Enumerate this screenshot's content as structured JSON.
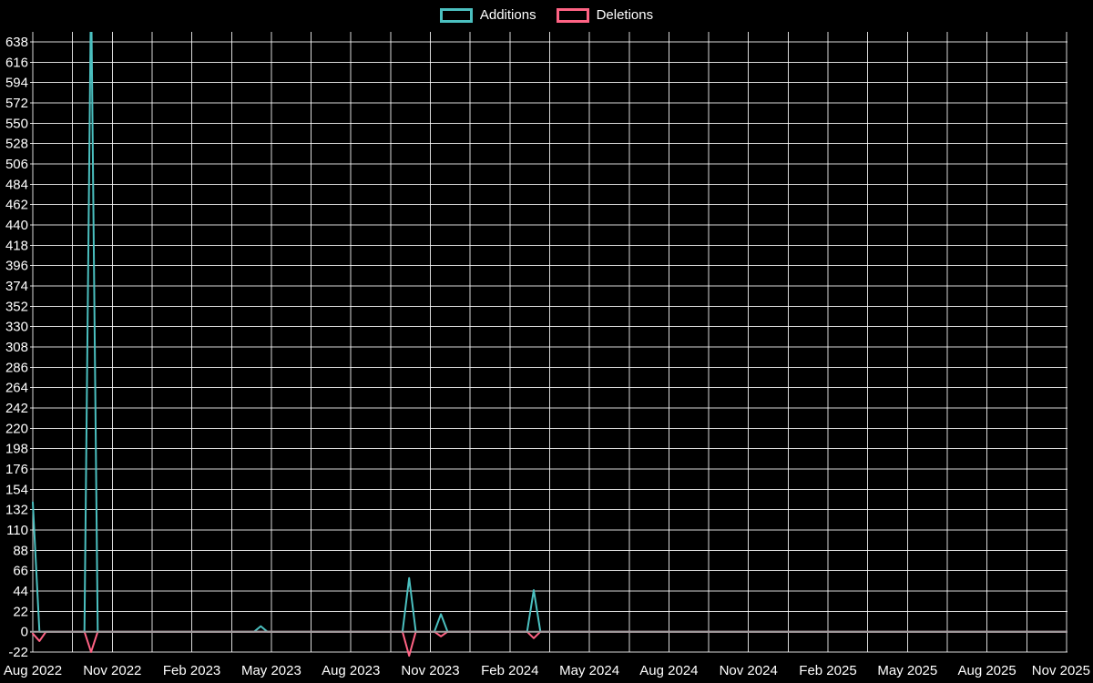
{
  "chart_data": {
    "type": "line",
    "title": "",
    "background": "#000000",
    "text_color": "#ffffff",
    "grid_color": "#ffffff",
    "zero_line_color": "#9e9e9e",
    "grid": true,
    "legend_position": "top-center",
    "x_unit": "months since Aug 2022 (weekly commit data)",
    "xlim": [
      0,
      39.1
    ],
    "ylim": [
      -30,
      650
    ],
    "x_tick_labels": [
      "Aug 2022",
      "Nov 2022",
      "Feb 2023",
      "May 2023",
      "Aug 2023",
      "Nov 2023",
      "Feb 2024",
      "May 2024",
      "Aug 2024",
      "Nov 2024",
      "Feb 2025",
      "May 2025",
      "Aug 2025",
      "Nov 2025"
    ],
    "x_tick_positions_months": [
      0,
      3,
      6,
      9,
      12,
      15,
      18,
      21,
      24,
      27,
      30,
      33,
      36,
      39
    ],
    "y_ticks": [
      -22,
      0,
      22,
      44,
      66,
      88,
      110,
      132,
      154,
      176,
      198,
      220,
      242,
      264,
      286,
      308,
      330,
      352,
      374,
      396,
      418,
      440,
      462,
      484,
      506,
      528,
      550,
      572,
      594,
      616,
      638
    ],
    "peak_clipped": true,
    "series": [
      {
        "name": "Additions",
        "color": "#4bc0c0",
        "points": [
          [
            0,
            140
          ],
          [
            0.25,
            0
          ],
          [
            1.95,
            0
          ],
          [
            2.2,
            700
          ],
          [
            2.45,
            0
          ],
          [
            8.35,
            0
          ],
          [
            8.6,
            6
          ],
          [
            8.85,
            0
          ],
          [
            13.95,
            0
          ],
          [
            14.2,
            58
          ],
          [
            14.45,
            0
          ],
          [
            15.15,
            0
          ],
          [
            15.4,
            19
          ],
          [
            15.65,
            0
          ],
          [
            18.65,
            0
          ],
          [
            18.9,
            45
          ],
          [
            19.15,
            0
          ],
          [
            39.1,
            0
          ]
        ]
      },
      {
        "name": "Deletions",
        "color": "#ff6384",
        "points": [
          [
            0,
            -2
          ],
          [
            0.25,
            -10
          ],
          [
            0.5,
            0
          ],
          [
            1.95,
            0
          ],
          [
            2.2,
            -22
          ],
          [
            2.45,
            0
          ],
          [
            13.95,
            0
          ],
          [
            14.2,
            -26
          ],
          [
            14.45,
            0
          ],
          [
            15.15,
            0
          ],
          [
            15.4,
            -5
          ],
          [
            15.65,
            0
          ],
          [
            18.65,
            0
          ],
          [
            18.9,
            -7
          ],
          [
            19.15,
            0
          ],
          [
            39.1,
            0
          ]
        ]
      }
    ]
  }
}
